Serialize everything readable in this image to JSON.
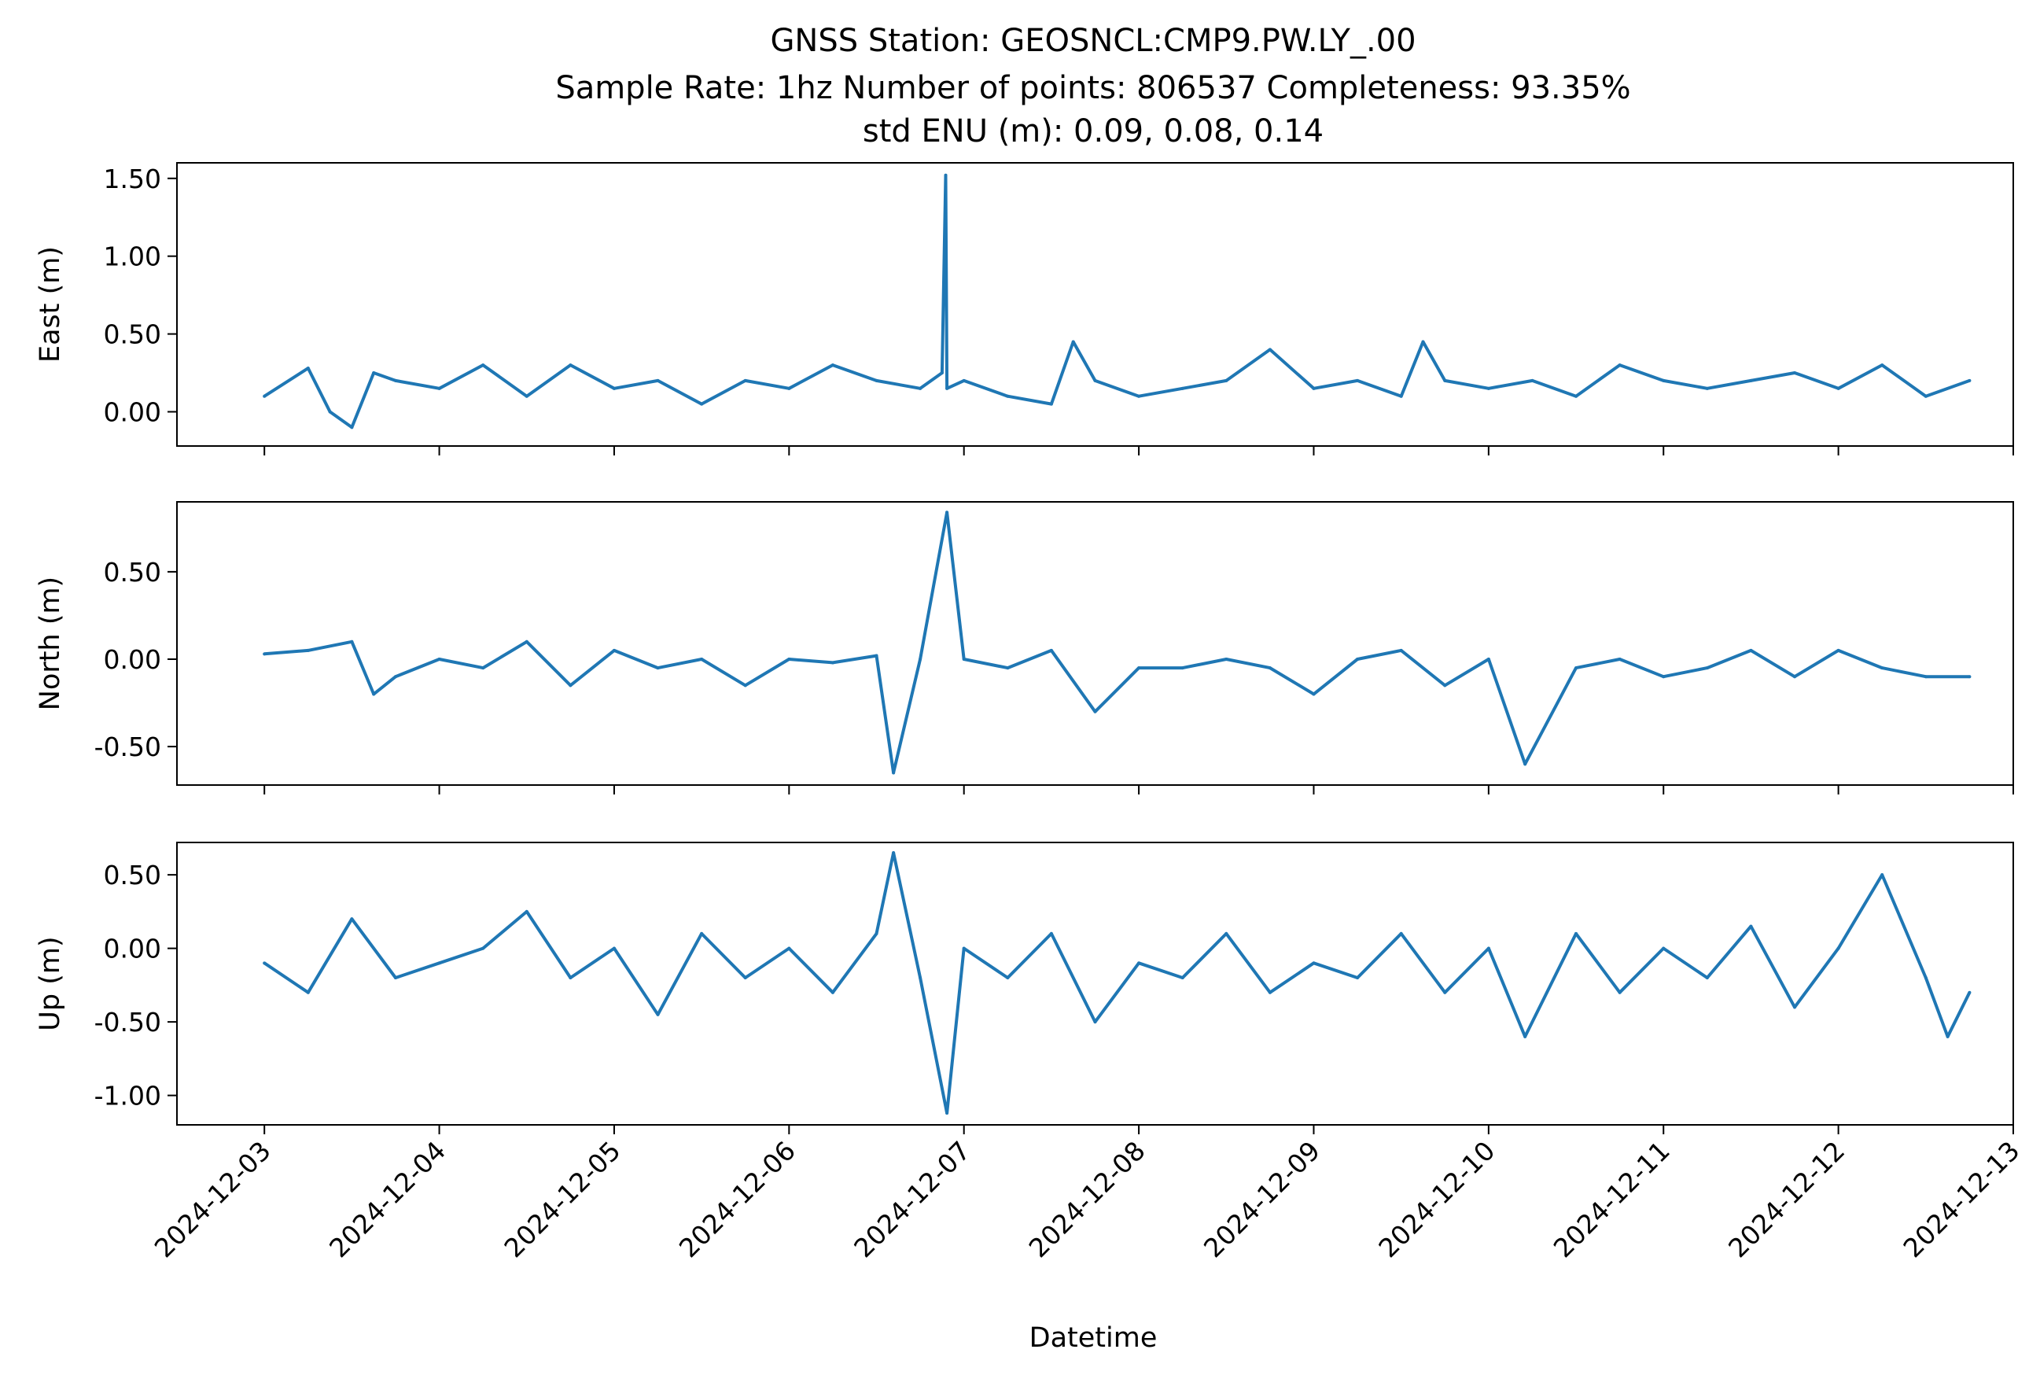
{
  "title": {
    "line1": "GNSS Station: GEOSNCL:CMP9.PW.LY_.00",
    "line2": "Sample Rate: 1hz   Number of points: 806537    Completeness:  93.35%",
    "line3": "std ENU (m):  0.09, 0.08, 0.14"
  },
  "chart_data": {
    "type": "line",
    "xlabel": "Datetime",
    "x_ticks": [
      "2024-12-03",
      "2024-12-04",
      "2024-12-05",
      "2024-12-06",
      "2024-12-07",
      "2024-12-08",
      "2024-12-09",
      "2024-12-10",
      "2024-12-11",
      "2024-12-12",
      "2024-12-13"
    ],
    "xlim": [
      "2024-12-02 12:00",
      "2024-12-13 00:00"
    ],
    "series_color": "#1f77b4",
    "panels": [
      {
        "name": "east",
        "ylabel": "East (m)",
        "ylim": [
          -0.22,
          1.6
        ],
        "yticks": [
          0.0,
          0.5,
          1.0,
          1.5
        ],
        "ytick_labels": [
          "0.00",
          "0.50",
          "1.00",
          "1.50"
        ],
        "x": [
          "2024-12-03 00:00",
          "2024-12-03 06:00",
          "2024-12-03 09:00",
          "2024-12-03 12:00",
          "2024-12-03 15:00",
          "2024-12-03 18:00",
          "2024-12-04 00:00",
          "2024-12-04 06:00",
          "2024-12-04 12:00",
          "2024-12-04 18:00",
          "2024-12-05 00:00",
          "2024-12-05 06:00",
          "2024-12-05 12:00",
          "2024-12-05 18:00",
          "2024-12-06 00:00",
          "2024-12-06 06:00",
          "2024-12-06 12:00",
          "2024-12-06 18:00",
          "2024-12-06 21:00",
          "2024-12-06 21:30",
          "2024-12-06 21:40",
          "2024-12-07 00:00",
          "2024-12-07 06:00",
          "2024-12-07 12:00",
          "2024-12-07 15:00",
          "2024-12-07 18:00",
          "2024-12-08 00:00",
          "2024-12-08 06:00",
          "2024-12-08 12:00",
          "2024-12-08 18:00",
          "2024-12-09 00:00",
          "2024-12-09 06:00",
          "2024-12-09 12:00",
          "2024-12-09 15:00",
          "2024-12-09 18:00",
          "2024-12-10 00:00",
          "2024-12-10 06:00",
          "2024-12-10 12:00",
          "2024-12-10 18:00",
          "2024-12-11 00:00",
          "2024-12-11 06:00",
          "2024-12-11 12:00",
          "2024-12-11 18:00",
          "2024-12-12 00:00",
          "2024-12-12 06:00",
          "2024-12-12 12:00",
          "2024-12-12 18:00"
        ],
        "y": [
          0.1,
          0.28,
          0.0,
          -0.1,
          0.25,
          0.2,
          0.15,
          0.3,
          0.1,
          0.3,
          0.15,
          0.2,
          0.05,
          0.2,
          0.15,
          0.3,
          0.2,
          0.15,
          0.25,
          1.52,
          0.15,
          0.2,
          0.1,
          0.05,
          0.45,
          0.2,
          0.1,
          0.15,
          0.2,
          0.4,
          0.15,
          0.2,
          0.1,
          0.45,
          0.2,
          0.15,
          0.2,
          0.1,
          0.3,
          0.2,
          0.15,
          0.2,
          0.25,
          0.15,
          0.3,
          0.1,
          0.2
        ]
      },
      {
        "name": "north",
        "ylabel": "North (m)",
        "ylim": [
          -0.72,
          0.9
        ],
        "yticks": [
          -0.5,
          0.0,
          0.5
        ],
        "ytick_labels": [
          "-0.50",
          "0.00",
          "0.50"
        ],
        "x": [
          "2024-12-03 00:00",
          "2024-12-03 06:00",
          "2024-12-03 12:00",
          "2024-12-03 15:00",
          "2024-12-03 18:00",
          "2024-12-04 00:00",
          "2024-12-04 06:00",
          "2024-12-04 12:00",
          "2024-12-04 18:00",
          "2024-12-05 00:00",
          "2024-12-05 06:00",
          "2024-12-05 12:00",
          "2024-12-05 18:00",
          "2024-12-06 00:00",
          "2024-12-06 06:00",
          "2024-12-06 12:00",
          "2024-12-06 14:20",
          "2024-12-06 18:00",
          "2024-12-06 21:40",
          "2024-12-07 00:00",
          "2024-12-07 06:00",
          "2024-12-07 12:00",
          "2024-12-07 18:00",
          "2024-12-08 00:00",
          "2024-12-08 06:00",
          "2024-12-08 12:00",
          "2024-12-08 18:00",
          "2024-12-09 00:00",
          "2024-12-09 06:00",
          "2024-12-09 12:00",
          "2024-12-09 18:00",
          "2024-12-10 00:00",
          "2024-12-10 05:00",
          "2024-12-10 12:00",
          "2024-12-10 18:00",
          "2024-12-11 00:00",
          "2024-12-11 06:00",
          "2024-12-11 12:00",
          "2024-12-11 18:00",
          "2024-12-12 00:00",
          "2024-12-12 06:00",
          "2024-12-12 12:00",
          "2024-12-12 18:00"
        ],
        "y": [
          0.03,
          0.05,
          0.1,
          -0.2,
          -0.1,
          0.0,
          -0.05,
          0.1,
          -0.15,
          0.05,
          -0.05,
          0.0,
          -0.15,
          0.0,
          -0.02,
          0.02,
          -0.65,
          0.0,
          0.84,
          0.0,
          -0.05,
          0.05,
          -0.3,
          -0.05,
          -0.05,
          0.0,
          -0.05,
          -0.2,
          0.0,
          0.05,
          -0.15,
          0.0,
          -0.6,
          -0.05,
          0.0,
          -0.1,
          -0.05,
          0.05,
          -0.1,
          0.05,
          -0.05,
          -0.1,
          -0.1
        ]
      },
      {
        "name": "up",
        "ylabel": "Up (m)",
        "ylim": [
          -1.2,
          0.72
        ],
        "yticks": [
          -1.0,
          -0.5,
          0.0,
          0.5
        ],
        "ytick_labels": [
          "-1.00",
          "-0.50",
          "0.00",
          "0.50"
        ],
        "x": [
          "2024-12-03 00:00",
          "2024-12-03 06:00",
          "2024-12-03 12:00",
          "2024-12-03 18:00",
          "2024-12-04 00:00",
          "2024-12-04 06:00",
          "2024-12-04 12:00",
          "2024-12-04 18:00",
          "2024-12-05 00:00",
          "2024-12-05 06:00",
          "2024-12-05 12:00",
          "2024-12-05 18:00",
          "2024-12-06 00:00",
          "2024-12-06 06:00",
          "2024-12-06 12:00",
          "2024-12-06 14:20",
          "2024-12-06 18:00",
          "2024-12-06 21:40",
          "2024-12-07 00:00",
          "2024-12-07 06:00",
          "2024-12-07 12:00",
          "2024-12-07 18:00",
          "2024-12-08 00:00",
          "2024-12-08 06:00",
          "2024-12-08 12:00",
          "2024-12-08 18:00",
          "2024-12-09 00:00",
          "2024-12-09 06:00",
          "2024-12-09 12:00",
          "2024-12-09 18:00",
          "2024-12-10 00:00",
          "2024-12-10 05:00",
          "2024-12-10 12:00",
          "2024-12-10 18:00",
          "2024-12-11 00:00",
          "2024-12-11 06:00",
          "2024-12-11 12:00",
          "2024-12-11 18:00",
          "2024-12-12 00:00",
          "2024-12-12 06:00",
          "2024-12-12 12:00",
          "2024-12-12 15:00",
          "2024-12-12 18:00"
        ],
        "y": [
          -0.1,
          -0.3,
          0.2,
          -0.2,
          -0.1,
          0.0,
          0.25,
          -0.2,
          0.0,
          -0.45,
          0.1,
          -0.2,
          0.0,
          -0.3,
          0.1,
          0.65,
          -0.2,
          -1.12,
          0.0,
          -0.2,
          0.1,
          -0.5,
          -0.1,
          -0.2,
          0.1,
          -0.3,
          -0.1,
          -0.2,
          0.1,
          -0.3,
          0.0,
          -0.6,
          0.1,
          -0.3,
          0.0,
          -0.2,
          0.15,
          -0.4,
          0.0,
          0.5,
          -0.2,
          -0.6,
          -0.3
        ]
      }
    ]
  }
}
